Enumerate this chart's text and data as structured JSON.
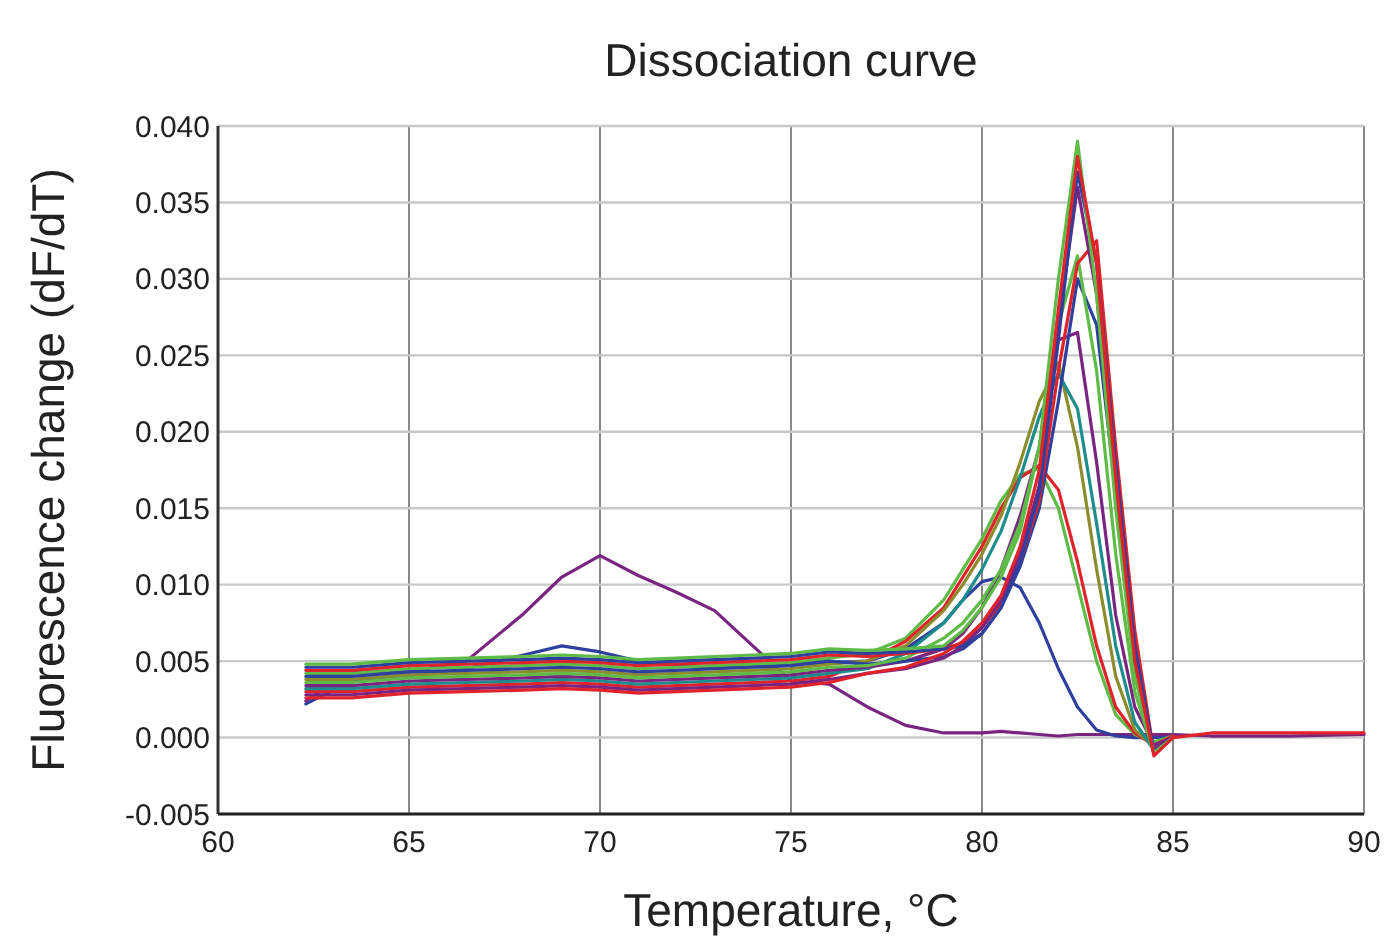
{
  "chart_data": {
    "type": "line",
    "title": "Dissociation curve",
    "xlabel": "Temperature, °C",
    "ylabel": "Fluorescence change (dF/dT)",
    "x": [
      62.3,
      63.5,
      65,
      66.5,
      68,
      69,
      70,
      71,
      72,
      73,
      74,
      75,
      76,
      77,
      78,
      79,
      79.5,
      80,
      80.5,
      81,
      81.5,
      82,
      82.5,
      83,
      83.5,
      84,
      84.5,
      85,
      86,
      88,
      90
    ],
    "xlim": [
      60,
      90
    ],
    "xticks": [
      60,
      65,
      70,
      75,
      80,
      85,
      90
    ],
    "ylim": [
      -0.005,
      0.04
    ],
    "yticks": [
      {
        "value": -0.005,
        "label": "-0.005"
      },
      {
        "value": 0,
        "label": "0.000"
      },
      {
        "value": 0.005,
        "label": "0.005"
      },
      {
        "value": 0.01,
        "label": "0.010"
      },
      {
        "value": 0.015,
        "label": "0.015"
      },
      {
        "value": 0.02,
        "label": "0.020"
      },
      {
        "value": 0.025,
        "label": "0.025"
      },
      {
        "value": 0.03,
        "label": "0.030"
      },
      {
        "value": 0.035,
        "label": "0.035"
      },
      {
        "value": 0.04,
        "label": "0.040"
      }
    ],
    "grid": true,
    "series": [
      {
        "color": "#7a2482",
        "values": [
          0.0024,
          0.0043,
          0.0043,
          0.005,
          0.0081,
          0.0105,
          0.0119,
          0.0106,
          0.0095,
          0.0083,
          0.006,
          0.0037,
          0.0035,
          0.002,
          0.0008,
          0.0003,
          0.0003,
          0.0003,
          0.0004,
          0.0003,
          0.0002,
          0.0001,
          0.0002,
          0.0002,
          0.0002,
          0.0002,
          0.0002,
          0.0002,
          0.0001,
          0.0001,
          0.0002
        ]
      },
      {
        "color": "#2e3f9e",
        "values": [
          0.0022,
          0.0037,
          0.004,
          0.0045,
          0.0054,
          0.006,
          0.0056,
          0.005,
          0.0047,
          0.0046,
          0.0047,
          0.0048,
          0.0049,
          0.005,
          0.0058,
          0.0075,
          0.009,
          0.0102,
          0.0105,
          0.0098,
          0.0075,
          0.0045,
          0.002,
          0.0005,
          0.0001,
          0,
          0,
          0,
          null,
          null,
          null
        ]
      },
      {
        "color": "#5dbb46",
        "values": [
          0.0042,
          0.0042,
          0.0045,
          0.0046,
          0.0047,
          0.0048,
          0.0047,
          0.0045,
          0.0046,
          0.0047,
          0.0048,
          0.0049,
          0.0052,
          0.0055,
          0.0065,
          0.009,
          0.011,
          0.013,
          0.0155,
          0.0172,
          0.0176,
          0.015,
          0.01,
          0.005,
          0.0015,
          0.0002,
          -0.0003,
          0.0001,
          null,
          null,
          null
        ]
      },
      {
        "color": "#e0232a",
        "values": [
          0.003,
          0.003,
          0.0033,
          0.0034,
          0.0035,
          0.0036,
          0.0035,
          0.0033,
          0.0034,
          0.0035,
          0.0036,
          0.0037,
          0.004,
          0.005,
          0.0063,
          0.0085,
          0.0105,
          0.0125,
          0.015,
          0.017,
          0.0178,
          0.0162,
          0.0115,
          0.006,
          0.002,
          0.0003,
          -0.0005,
          0.0001,
          null,
          null,
          null
        ]
      },
      {
        "color": "#8c8c2e",
        "values": [
          0.0038,
          0.0038,
          0.0041,
          0.0042,
          0.0043,
          0.0044,
          0.0043,
          0.0041,
          0.0042,
          0.0043,
          0.0044,
          0.0045,
          0.0048,
          0.005,
          0.006,
          0.0083,
          0.01,
          0.012,
          0.0145,
          0.018,
          0.022,
          0.0245,
          0.019,
          0.011,
          0.004,
          0.0005,
          -0.0006,
          0,
          null,
          null,
          null
        ]
      },
      {
        "color": "#1c8c8c",
        "values": [
          0.0032,
          0.0032,
          0.0035,
          0.0036,
          0.0037,
          0.0038,
          0.0037,
          0.0035,
          0.0036,
          0.0037,
          0.0038,
          0.0039,
          0.0042,
          0.0045,
          0.0055,
          0.0075,
          0.009,
          0.011,
          0.0135,
          0.017,
          0.021,
          0.0238,
          0.0215,
          0.014,
          0.006,
          0.001,
          -0.0008,
          0,
          null,
          null,
          null
        ]
      },
      {
        "color": "#7a2482",
        "values": [
          0.0034,
          0.0034,
          0.0037,
          0.0038,
          0.0039,
          0.004,
          0.0039,
          0.0037,
          0.0038,
          0.0039,
          0.004,
          0.0041,
          0.0044,
          0.0046,
          0.005,
          0.0058,
          0.0068,
          0.0085,
          0.011,
          0.0145,
          0.019,
          0.026,
          0.0265,
          0.018,
          0.008,
          0.002,
          -0.0005,
          0,
          null,
          null,
          null
        ]
      },
      {
        "color": "#2e3f9e",
        "values": [
          0.004,
          0.004,
          0.0043,
          0.0044,
          0.0045,
          0.0046,
          0.0045,
          0.0043,
          0.0044,
          0.0045,
          0.0046,
          0.0047,
          0.005,
          0.0048,
          0.005,
          0.0053,
          0.0058,
          0.0068,
          0.0085,
          0.0112,
          0.015,
          0.022,
          0.03,
          0.027,
          0.016,
          0.005,
          -0.001,
          0,
          null,
          null,
          null
        ]
      },
      {
        "color": "#5dbb46",
        "values": [
          0.0036,
          0.0036,
          0.0039,
          0.004,
          0.0041,
          0.0042,
          0.0041,
          0.0039,
          0.004,
          0.0041,
          0.0042,
          0.0043,
          0.0046,
          0.0047,
          0.0052,
          0.0065,
          0.0075,
          0.009,
          0.011,
          0.014,
          0.019,
          0.027,
          0.0315,
          0.024,
          0.012,
          0.003,
          -0.001,
          0,
          null,
          null,
          null
        ]
      },
      {
        "color": "#e0232a",
        "values": [
          0.0044,
          0.0044,
          0.0047,
          0.0048,
          0.0049,
          0.005,
          0.0049,
          0.0047,
          0.0048,
          0.0049,
          0.005,
          0.0051,
          0.0054,
          0.0053,
          0.0055,
          0.0058,
          0.0062,
          0.0072,
          0.0088,
          0.0115,
          0.0155,
          0.024,
          0.031,
          0.0325,
          0.019,
          0.007,
          -0.001,
          0,
          null,
          null,
          null
        ]
      },
      {
        "color": "#7a2482",
        "values": [
          0.0028,
          0.0028,
          0.0031,
          0.0032,
          0.0033,
          0.0034,
          0.0033,
          0.0031,
          0.0032,
          0.0033,
          0.0034,
          0.0035,
          0.0038,
          0.0042,
          0.0045,
          0.0052,
          0.006,
          0.0072,
          0.009,
          0.012,
          0.0165,
          0.027,
          0.036,
          0.029,
          0.016,
          0.005,
          -0.0008,
          0,
          null,
          null,
          null
        ]
      },
      {
        "color": "#2e3f9e",
        "values": [
          0.0046,
          0.0046,
          0.0049,
          0.005,
          0.0051,
          0.0052,
          0.0051,
          0.0049,
          0.005,
          0.0051,
          0.0052,
          0.0053,
          0.0056,
          0.0055,
          0.0056,
          0.0058,
          0.006,
          0.0068,
          0.0085,
          0.0115,
          0.016,
          0.026,
          0.037,
          0.031,
          0.018,
          0.006,
          -0.001,
          0,
          null,
          null,
          null
        ]
      },
      {
        "color": "#5dbb46",
        "values": [
          0.0048,
          0.0048,
          0.0051,
          0.0052,
          0.0053,
          0.0054,
          0.0053,
          0.0051,
          0.0052,
          0.0053,
          0.0054,
          0.0055,
          0.0058,
          0.0057,
          0.0058,
          0.006,
          0.007,
          0.0085,
          0.0105,
          0.0135,
          0.019,
          0.03,
          0.039,
          0.029,
          0.015,
          0.004,
          -0.001,
          0,
          null,
          null,
          null
        ]
      },
      {
        "color": "#e0232a",
        "values": [
          0.0026,
          0.0026,
          0.0029,
          0.003,
          0.0031,
          0.0032,
          0.0031,
          0.0029,
          0.003,
          0.0031,
          0.0032,
          0.0033,
          0.0036,
          0.0042,
          0.0046,
          0.0055,
          0.0063,
          0.0075,
          0.0093,
          0.0125,
          0.0175,
          0.028,
          0.038,
          0.031,
          0.017,
          0.005,
          -0.0012,
          0,
          0.0003,
          0.0003,
          0.0003
        ]
      }
    ]
  }
}
